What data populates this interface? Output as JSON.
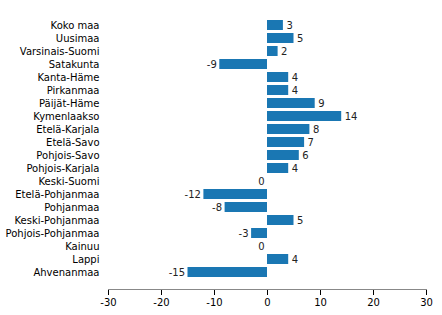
{
  "chart_data": {
    "type": "bar",
    "orientation": "horizontal",
    "categories": [
      "Koko maa",
      "Uusimaa",
      "Varsinais-Suomi",
      "Satakunta",
      "Kanta-Häme",
      "Pirkanmaa",
      "Päijät-Häme",
      "Kymenlaakso",
      "Etelä-Karjala",
      "Etelä-Savo",
      "Pohjois-Savo",
      "Pohjois-Karjala",
      "Keski-Suomi",
      "Etelä-Pohjanmaa",
      "Pohjanmaa",
      "Keski-Pohjanmaa",
      "Pohjois-Pohjanmaa",
      "Kainuu",
      "Lappi",
      "Ahvenanmaa"
    ],
    "values": [
      3,
      5,
      2,
      -9,
      4,
      4,
      9,
      14,
      8,
      7,
      6,
      4,
      0,
      -12,
      -8,
      5,
      -3,
      0,
      4,
      -15
    ],
    "color": "#1a77b3",
    "xlim": [
      -30,
      30
    ],
    "xticks": [
      -30,
      -20,
      -10,
      0,
      10,
      20,
      30
    ],
    "grid": false,
    "data_labels": true
  }
}
